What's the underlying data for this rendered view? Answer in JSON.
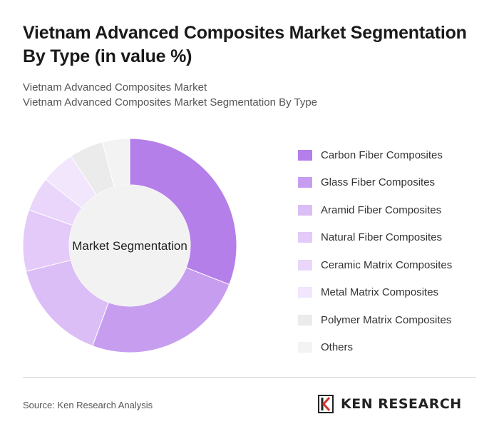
{
  "header": {
    "title": "Vietnam Advanced Composites Market Segmentation By Type (in value %)",
    "subtitle_1": "Vietnam Advanced Composites Market",
    "subtitle_2": "Vietnam Advanced Composites Market Segmentation By Type"
  },
  "chart_data": {
    "type": "pie",
    "variant": "donut",
    "center_label": "Market Segmentation",
    "categories": [
      "Carbon Fiber Composites",
      "Glass Fiber Composites",
      "Aramid Fiber Composites",
      "Natural Fiber Composites",
      "Ceramic Matrix Composites",
      "Metal Matrix Composites",
      "Polymer Matrix Composites",
      "Others"
    ],
    "values": [
      30,
      24,
      15,
      9,
      5,
      5,
      5,
      4
    ],
    "colors": [
      "#b57fea",
      "#c79df0",
      "#dbbef6",
      "#e3caf8",
      "#e9d6fa",
      "#f1e6fc",
      "#ebebeb",
      "#f3f3f3"
    ],
    "legend_position": "right"
  },
  "footer": {
    "source": "Source: Ken Research Analysis",
    "logo_text": "KEN RESEARCH"
  }
}
